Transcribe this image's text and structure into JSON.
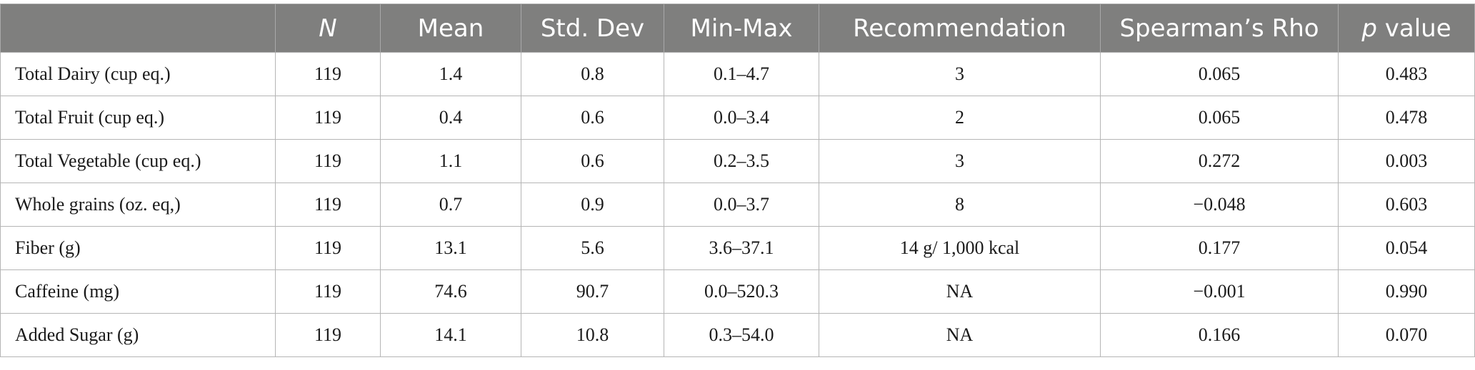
{
  "table": {
    "headers": {
      "label": "",
      "n": "N",
      "mean": "Mean",
      "sd": "Std. Dev",
      "minmax": "Min-Max",
      "rec": "Recommendation",
      "rho": "Spearman’s Rho",
      "p_italic": "p",
      "p_rest": " value"
    },
    "rows": [
      {
        "label": "Total Dairy (cup eq.)",
        "n": "119",
        "mean": "1.4",
        "sd": "0.8",
        "minmax": "0.1–4.7",
        "rec": "3",
        "rho": "0.065",
        "p": "0.483"
      },
      {
        "label": "Total Fruit (cup eq.)",
        "n": "119",
        "mean": "0.4",
        "sd": "0.6",
        "minmax": "0.0–3.4",
        "rec": "2",
        "rho": "0.065",
        "p": "0.478"
      },
      {
        "label": "Total Vegetable (cup eq.)",
        "n": "119",
        "mean": "1.1",
        "sd": "0.6",
        "minmax": "0.2–3.5",
        "rec": "3",
        "rho": "0.272",
        "p": "0.003"
      },
      {
        "label": "Whole grains (oz. eq,)",
        "n": "119",
        "mean": "0.7",
        "sd": "0.9",
        "minmax": "0.0–3.7",
        "rec": "8",
        "rho": "−0.048",
        "p": "0.603"
      },
      {
        "label": "Fiber (g)",
        "n": "119",
        "mean": "13.1",
        "sd": "5.6",
        "minmax": "3.6–37.1",
        "rec": "14 g/ 1,000 kcal",
        "rho": "0.177",
        "p": "0.054"
      },
      {
        "label": "Caffeine (mg)",
        "n": "119",
        "mean": "74.6",
        "sd": "90.7",
        "minmax": "0.0–520.3",
        "rec": "NA",
        "rho": "−0.001",
        "p": "0.990"
      },
      {
        "label": "Added Sugar (g)",
        "n": "119",
        "mean": "14.1",
        "sd": "10.8",
        "minmax": "0.3–54.0",
        "rec": "NA",
        "rho": "0.166",
        "p": "0.070"
      }
    ]
  }
}
